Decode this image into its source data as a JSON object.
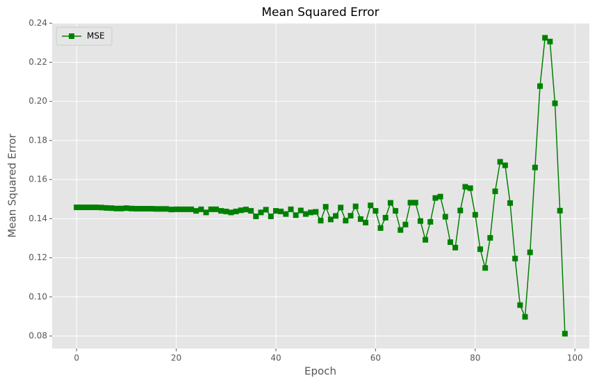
{
  "chart_data": {
    "type": "line",
    "title": "Mean Squared Error",
    "xlabel": "Epoch",
    "ylabel": "Mean Squared Error",
    "x": [
      0,
      1,
      2,
      3,
      4,
      5,
      6,
      7,
      8,
      9,
      10,
      11,
      12,
      13,
      14,
      15,
      16,
      17,
      18,
      19,
      20,
      21,
      22,
      23,
      24,
      25,
      26,
      27,
      28,
      29,
      30,
      31,
      32,
      33,
      34,
      35,
      36,
      37,
      38,
      39,
      40,
      41,
      42,
      43,
      44,
      45,
      46,
      47,
      48,
      49,
      50,
      51,
      52,
      53,
      54,
      55,
      56,
      57,
      58,
      59,
      60,
      61,
      62,
      63,
      64,
      65,
      66,
      67,
      68,
      69,
      70,
      71,
      72,
      73,
      74,
      75,
      76,
      77,
      78,
      79,
      80,
      81,
      82,
      83,
      84,
      85,
      86,
      87,
      88,
      89,
      90,
      91,
      92,
      93,
      94,
      95,
      96,
      97,
      98
    ],
    "series": [
      {
        "name": "MSE",
        "color": "#008000",
        "marker": "square",
        "values": [
          0.1458,
          0.1458,
          0.1458,
          0.1458,
          0.1458,
          0.1457,
          0.1455,
          0.1454,
          0.1452,
          0.1452,
          0.1454,
          0.1452,
          0.1451,
          0.1451,
          0.1451,
          0.1451,
          0.145,
          0.145,
          0.145,
          0.1447,
          0.1448,
          0.1448,
          0.1448,
          0.1448,
          0.144,
          0.1448,
          0.1432,
          0.1448,
          0.1448,
          0.144,
          0.1437,
          0.1432,
          0.1437,
          0.1443,
          0.1447,
          0.144,
          0.1412,
          0.1432,
          0.1446,
          0.1412,
          0.144,
          0.1437,
          0.1424,
          0.1448,
          0.1418,
          0.1442,
          0.1424,
          0.1432,
          0.1435,
          0.139,
          0.1461,
          0.1396,
          0.1414,
          0.1457,
          0.139,
          0.1415,
          0.1463,
          0.1398,
          0.138,
          0.1468,
          0.144,
          0.1352,
          0.1405,
          0.1481,
          0.144,
          0.1342,
          0.137,
          0.1482,
          0.1482,
          0.1388,
          0.1292,
          0.1384,
          0.1506,
          0.1513,
          0.141,
          0.128,
          0.1252,
          0.1442,
          0.1563,
          0.1556,
          0.142,
          0.1244,
          0.1148,
          0.1302,
          0.154,
          0.1691,
          0.1673,
          0.148,
          0.1196,
          0.0958,
          0.0898,
          0.1228,
          0.1662,
          0.2078,
          0.2325,
          0.2306,
          0.199,
          0.1441,
          0.0812
        ]
      }
    ],
    "xlim": [
      -4.9,
      102.9
    ],
    "ylim": [
      0.0736,
      0.2401
    ],
    "xticks": [
      0,
      20,
      40,
      60,
      80,
      100
    ],
    "yticks": [
      0.08,
      {
        "value": 0.1,
        "label": "0.10"
      },
      0.12,
      0.14,
      0.16,
      0.18,
      {
        "value": 0.2,
        "label": "0.20"
      },
      0.22,
      0.24
    ],
    "grid": true,
    "legend": "upper-left"
  }
}
